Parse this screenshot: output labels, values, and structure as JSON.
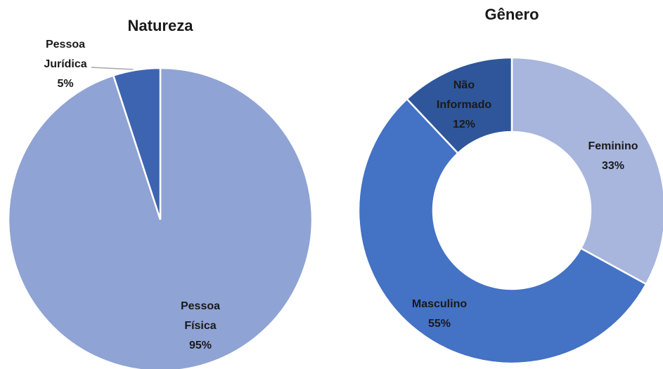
{
  "chart_data": [
    {
      "type": "pie",
      "title": "Natureza",
      "categories": [
        "Pessoa Física",
        "Pessoa Jurídica"
      ],
      "values": [
        95,
        5
      ],
      "value_labels": [
        "95%",
        "5%"
      ],
      "colors": [
        "#8fa3d4",
        "#3d64b0"
      ]
    },
    {
      "type": "donut",
      "title": "Gênero",
      "categories": [
        "Feminino",
        "Masculino",
        "Não Informado"
      ],
      "values": [
        33,
        55,
        12
      ],
      "value_labels": [
        "33%",
        "55%",
        "12%"
      ],
      "colors": [
        "#a8b6dd",
        "#4472c4",
        "#2f569a"
      ]
    }
  ]
}
